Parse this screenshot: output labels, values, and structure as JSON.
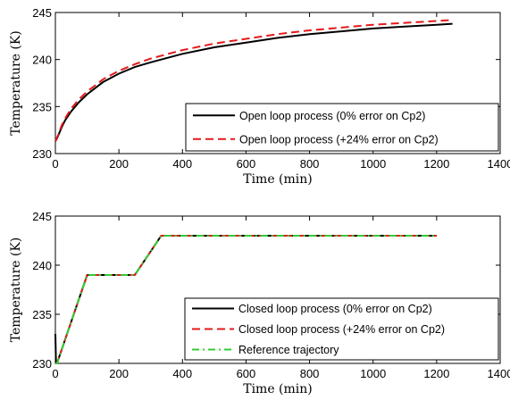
{
  "chart_data": [
    {
      "type": "line",
      "xlabel": "Time (min)",
      "ylabel": "Temperature (K)",
      "xlim": [
        0,
        1400
      ],
      "ylim": [
        230,
        245
      ],
      "xticks": [
        "0",
        "200",
        "400",
        "600",
        "800",
        "1000",
        "1200",
        "1400"
      ],
      "yticks": [
        "230",
        "235",
        "240",
        "245"
      ],
      "legend_position": "bottom-right",
      "grid": false,
      "series": [
        {
          "name": "Open loop process (0% error on Cp2)",
          "color": "#000000",
          "style": "solid",
          "x": [
            0,
            5,
            10,
            20,
            30,
            50,
            75,
            100,
            150,
            200,
            250,
            300,
            400,
            500,
            600,
            700,
            800,
            900,
            1000,
            1100,
            1200,
            1250
          ],
          "y": [
            231.3,
            231.6,
            232.0,
            232.8,
            233.5,
            234.5,
            235.5,
            236.3,
            237.6,
            238.5,
            239.2,
            239.7,
            240.6,
            241.3,
            241.8,
            242.3,
            242.7,
            243.0,
            243.3,
            243.5,
            243.7,
            243.8
          ]
        },
        {
          "name": "Open loop process (+24% error on Cp2)",
          "color": "#e31a1c",
          "style": "dashed",
          "x": [
            0,
            5,
            10,
            20,
            30,
            50,
            75,
            100,
            150,
            200,
            250,
            300,
            400,
            500,
            600,
            700,
            800,
            900,
            1000,
            1100,
            1200,
            1250
          ],
          "y": [
            231.3,
            231.7,
            232.1,
            233.0,
            233.7,
            234.8,
            235.8,
            236.6,
            237.9,
            238.8,
            239.5,
            240.1,
            241.0,
            241.7,
            242.2,
            242.7,
            243.1,
            243.4,
            243.7,
            243.9,
            244.1,
            244.2
          ]
        }
      ]
    },
    {
      "type": "line",
      "xlabel": "Time (min)",
      "ylabel": "Temperature (K)",
      "xlim": [
        0,
        1400
      ],
      "ylim": [
        230,
        245
      ],
      "xticks": [
        "0",
        "200",
        "400",
        "600",
        "800",
        "1000",
        "1200",
        "1400"
      ],
      "yticks": [
        "230",
        "235",
        "240",
        "245"
      ],
      "legend_position": "bottom-right",
      "grid": false,
      "series": [
        {
          "name": "Closed loop process (0% error on Cp2)",
          "color": "#000000",
          "style": "solid",
          "x": [
            0,
            2,
            5,
            100,
            250,
            333,
            1200
          ],
          "y": [
            233.0,
            230.0,
            230.0,
            239.0,
            239.0,
            243.0,
            243.0
          ]
        },
        {
          "name": "Closed loop process (+24% error on Cp2)",
          "color": "#e31a1c",
          "style": "dashed",
          "x": [
            0,
            5,
            100,
            250,
            333,
            1200
          ],
          "y": [
            230.0,
            230.0,
            239.0,
            239.0,
            243.0,
            243.0
          ]
        },
        {
          "name": "Reference trajectory",
          "color": "#33cc33",
          "style": "dashdot",
          "x": [
            0,
            5,
            100,
            250,
            333,
            1200
          ],
          "y": [
            230.0,
            230.0,
            239.0,
            239.0,
            243.0,
            243.0
          ]
        }
      ]
    }
  ]
}
